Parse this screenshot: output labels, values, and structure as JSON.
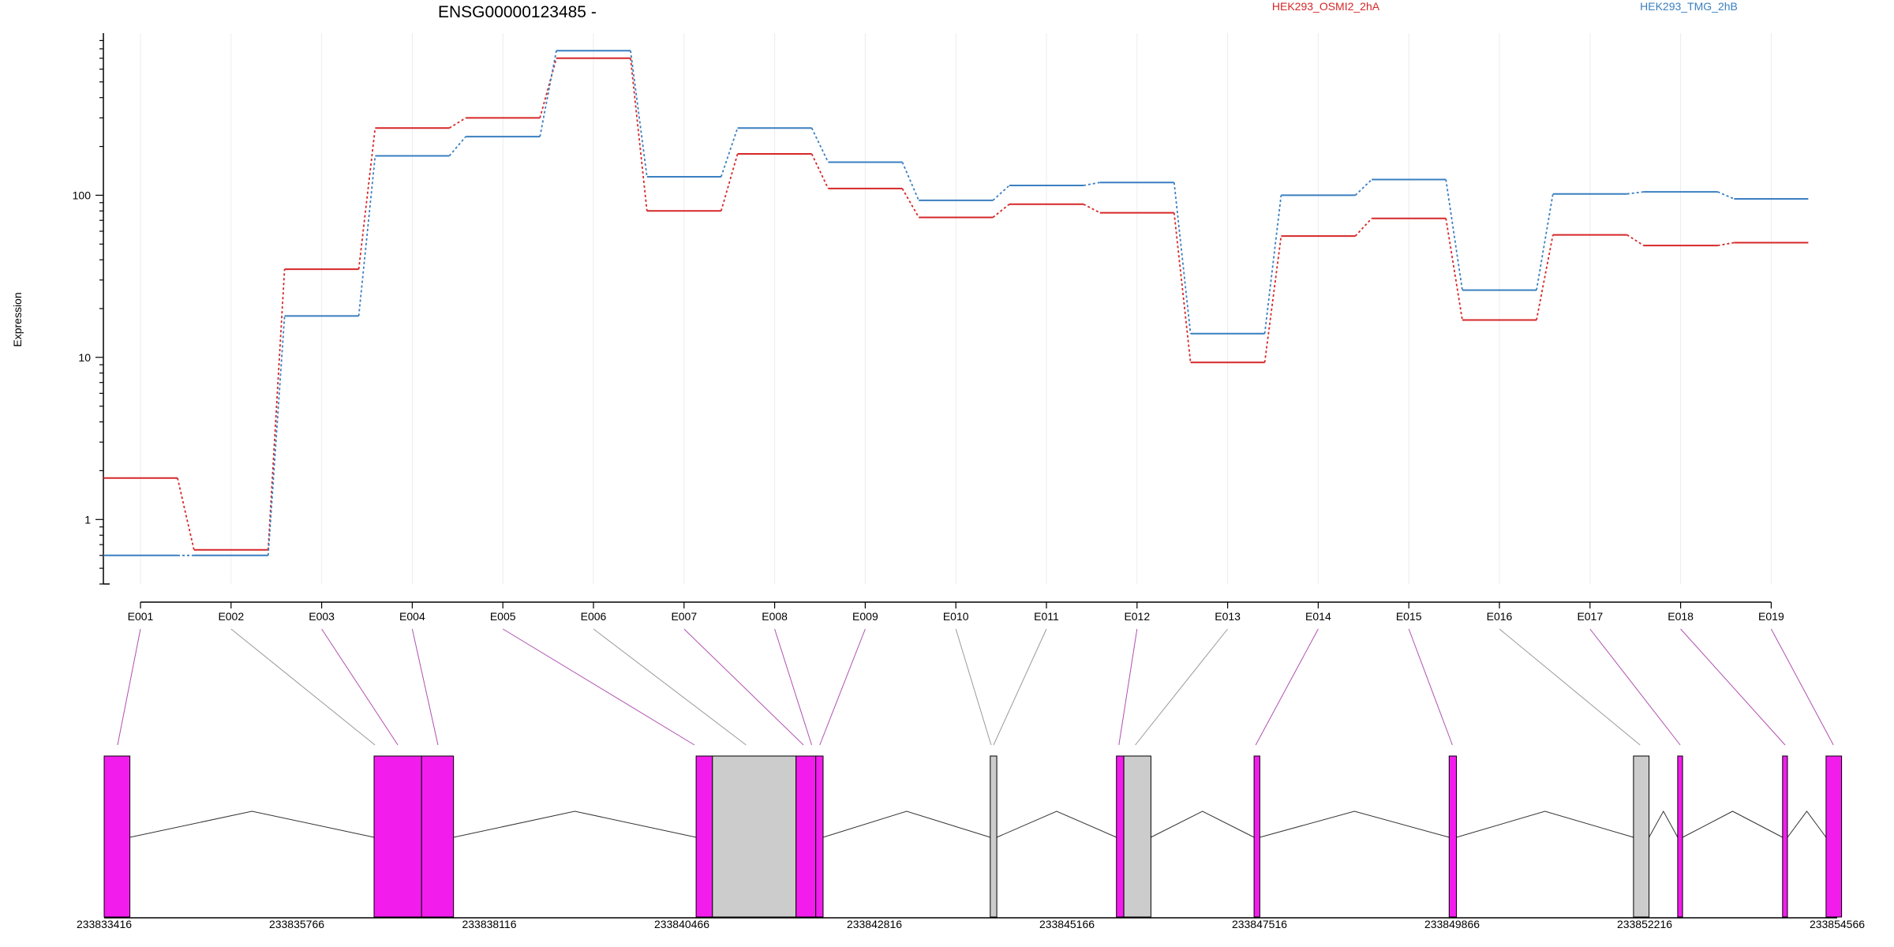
{
  "chart_data": {
    "type": "line",
    "title": "ENSG00000123485 -",
    "ylabel": "Expression",
    "yscale": "log",
    "ylim": [
      0.4,
      1000
    ],
    "yticks": [
      "1",
      "10",
      "100"
    ],
    "grid": true,
    "legend_placement": "top-right",
    "categories": [
      "E001",
      "E002",
      "E003",
      "E004",
      "E005",
      "E006",
      "E007",
      "E008",
      "E009",
      "E010",
      "E011",
      "E012",
      "E013",
      "E014",
      "E015",
      "E016",
      "E017",
      "E018",
      "E019"
    ],
    "series": [
      {
        "name": "HEK293_OSMI2_2hA",
        "color": "#d62728",
        "values": [
          1.8,
          0.65,
          35,
          260,
          300,
          700,
          80,
          180,
          110,
          73,
          88,
          78,
          9.3,
          56,
          72,
          17,
          57,
          49,
          51
        ]
      },
      {
        "name": "HEK293_TMG_2hB",
        "color": "#3a7fc1",
        "values": [
          0.6,
          0.6,
          18,
          175,
          230,
          780,
          130,
          260,
          160,
          93,
          115,
          120,
          14,
          100,
          125,
          26,
          102,
          105,
          95
        ]
      }
    ],
    "gene_model": {
      "coordinates": [
        "233833416",
        "233835766",
        "233838116",
        "233840466",
        "233842816",
        "233845166",
        "233847516",
        "233849866",
        "233852216",
        "233854566"
      ],
      "exon_fill_colors": {
        "expressed": "#f21ded",
        "other": "#cccccc"
      },
      "blocks": [
        {
          "start": 233833416,
          "end": 233833730,
          "kind": "expressed"
        },
        {
          "start": 233836710,
          "end": 233837290,
          "kind": "expressed"
        },
        {
          "start": 233837290,
          "end": 233837680,
          "kind": "expressed"
        },
        {
          "start": 233840640,
          "end": 233840840,
          "kind": "expressed"
        },
        {
          "start": 233840840,
          "end": 233841860,
          "kind": "other"
        },
        {
          "start": 233841860,
          "end": 233842100,
          "kind": "expressed"
        },
        {
          "start": 233842100,
          "end": 233842190,
          "kind": "expressed"
        },
        {
          "start": 233844230,
          "end": 233844310,
          "kind": "other"
        },
        {
          "start": 233845770,
          "end": 233845860,
          "kind": "expressed"
        },
        {
          "start": 233845860,
          "end": 233846190,
          "kind": "other"
        },
        {
          "start": 233847450,
          "end": 233847520,
          "kind": "expressed"
        },
        {
          "start": 233849830,
          "end": 233849920,
          "kind": "expressed"
        },
        {
          "start": 233852080,
          "end": 233852270,
          "kind": "other"
        },
        {
          "start": 233852620,
          "end": 233852680,
          "kind": "expressed"
        },
        {
          "start": 233853900,
          "end": 233853960,
          "kind": "expressed"
        },
        {
          "start": 233854430,
          "end": 233854620,
          "kind": "expressed"
        }
      ],
      "introns": [
        [
          233833730,
          233836710
        ],
        [
          233837680,
          233840640
        ],
        [
          233842190,
          233844230
        ],
        [
          233844310,
          233845770
        ],
        [
          233846190,
          233847450
        ],
        [
          233847520,
          233849830
        ],
        [
          233849920,
          233852080
        ],
        [
          233852270,
          233852620
        ],
        [
          233852680,
          233853900
        ],
        [
          233853960,
          233854430
        ]
      ],
      "connectors": [
        {
          "exon": 0,
          "pos": 233833580,
          "color": "#b050b0"
        },
        {
          "exon": 1,
          "pos": 233836720,
          "color": "#999999"
        },
        {
          "exon": 2,
          "pos": 233837000,
          "color": "#b050b0"
        },
        {
          "exon": 3,
          "pos": 233837490,
          "color": "#b050b0"
        },
        {
          "exon": 4,
          "pos": 233840620,
          "color": "#b050b0"
        },
        {
          "exon": 5,
          "pos": 233841250,
          "color": "#999999"
        },
        {
          "exon": 6,
          "pos": 233841950,
          "color": "#b050b0"
        },
        {
          "exon": 7,
          "pos": 233842050,
          "color": "#b050b0"
        },
        {
          "exon": 8,
          "pos": 233842150,
          "color": "#b050b0"
        },
        {
          "exon": 9,
          "pos": 233844240,
          "color": "#999999"
        },
        {
          "exon": 10,
          "pos": 233844270,
          "color": "#999999"
        },
        {
          "exon": 11,
          "pos": 233845800,
          "color": "#b050b0"
        },
        {
          "exon": 12,
          "pos": 233846000,
          "color": "#999999"
        },
        {
          "exon": 13,
          "pos": 233847470,
          "color": "#b050b0"
        },
        {
          "exon": 14,
          "pos": 233849870,
          "color": "#b050b0"
        },
        {
          "exon": 15,
          "pos": 233852160,
          "color": "#999999"
        },
        {
          "exon": 16,
          "pos": 233852650,
          "color": "#b050b0"
        },
        {
          "exon": 17,
          "pos": 233853930,
          "color": "#b050b0"
        },
        {
          "exon": 18,
          "pos": 233854520,
          "color": "#b050b0"
        }
      ]
    }
  }
}
